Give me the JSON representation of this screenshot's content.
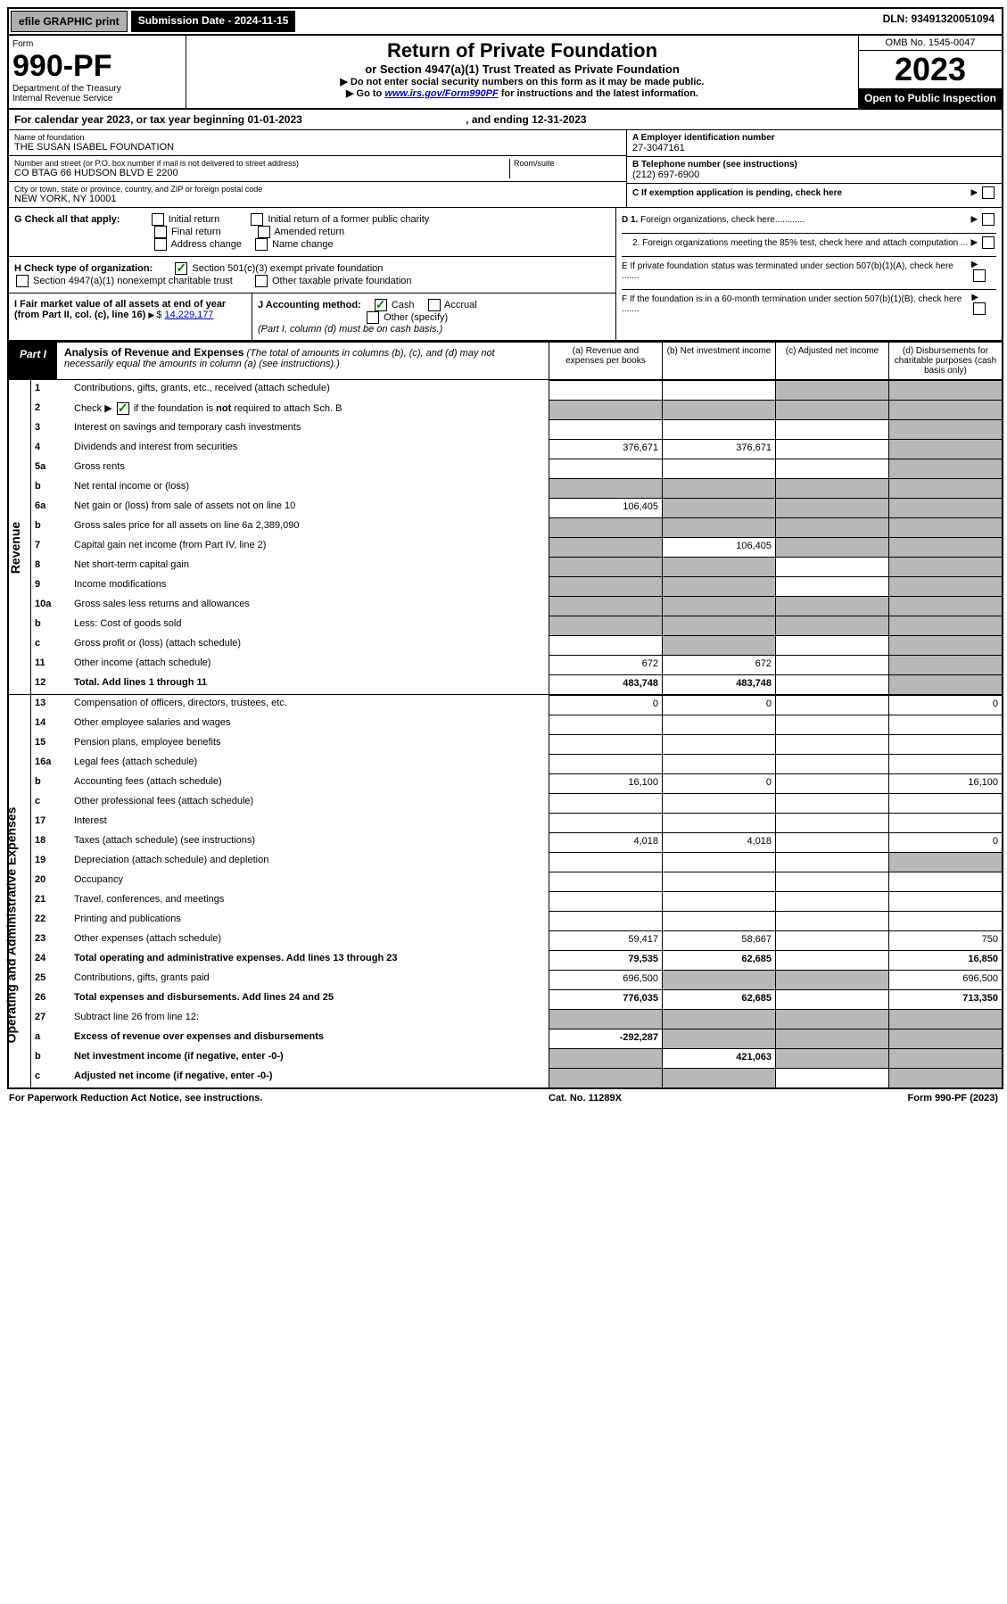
{
  "top": {
    "efile": "efile GRAPHIC print",
    "submission": "Submission Date - 2024-11-15",
    "dln": "DLN: 93491320051094"
  },
  "header": {
    "form_label": "Form",
    "form_num": "990-PF",
    "dept": "Department of the Treasury",
    "irs": "Internal Revenue Service",
    "title": "Return of Private Foundation",
    "subtitle": "or Section 4947(a)(1) Trust Treated as Private Foundation",
    "inst1": "▶ Do not enter social security numbers on this form as it may be made public.",
    "inst2": "▶ Go to ",
    "link": "www.irs.gov/Form990PF",
    "inst2b": " for instructions and the latest information.",
    "omb": "OMB No. 1545-0047",
    "year": "2023",
    "open": "Open to Public Inspection"
  },
  "cal_year": {
    "text": "For calendar year 2023, or tax year beginning 01-01-2023",
    "ending": ", and ending 12-31-2023"
  },
  "foundation": {
    "name_label": "Name of foundation",
    "name": "THE SUSAN ISABEL FOUNDATION",
    "addr_label": "Number and street (or P.O. box number if mail is not delivered to street address)",
    "addr": "CO BTAG 66 HUDSON BLVD E 2200",
    "room_label": "Room/suite",
    "city_label": "City or town, state or province, country, and ZIP or foreign postal code",
    "city": "NEW YORK, NY  10001"
  },
  "right_info": {
    "a_label": "A Employer identification number",
    "a_val": "27-3047161",
    "b_label": "B Telephone number (see instructions)",
    "b_val": "(212) 697-6900",
    "c_label": "C If exemption application is pending, check here",
    "d1": "D 1. Foreign organizations, check here............",
    "d2": "2. Foreign organizations meeting the 85% test, check here and attach computation ...",
    "e": "E  If private foundation status was terminated under section 507(b)(1)(A), check here .......",
    "f": "F  If the foundation is in a 60-month termination under section 507(b)(1)(B), check here ......."
  },
  "g_section": {
    "label": "G Check all that apply:",
    "opt1": "Initial return",
    "opt2": "Final return",
    "opt3": "Address change",
    "opt4": "Initial return of a former public charity",
    "opt5": "Amended return",
    "opt6": "Name change"
  },
  "h_section": {
    "label": "H Check type of organization:",
    "opt1": "Section 501(c)(3) exempt private foundation",
    "opt2": "Section 4947(a)(1) nonexempt charitable trust",
    "opt3": "Other taxable private foundation"
  },
  "i_section": {
    "label": "I Fair market value of all assets at end of year (from Part II, col. (c), line 16)",
    "value": "14,229,177"
  },
  "j_section": {
    "label": "J Accounting method:",
    "cash": "Cash",
    "accrual": "Accrual",
    "other": "Other (specify)",
    "note": "(Part I, column (d) must be on cash basis.)"
  },
  "part1": {
    "label": "Part I",
    "title": "Analysis of Revenue and Expenses",
    "sub": "(The total of amounts in columns (b), (c), and (d) may not necessarily equal the amounts in column (a) (see instructions).)",
    "col_a": "(a)   Revenue and expenses per books",
    "col_b": "(b)   Net investment income",
    "col_c": "(c)   Adjusted net income",
    "col_d": "(d)   Disbursements for charitable purposes (cash basis only)"
  },
  "side_labels": {
    "revenue": "Revenue",
    "expenses": "Operating and Administrative Expenses"
  },
  "rows": [
    {
      "n": "1",
      "d": "Contributions, gifts, grants, etc., received (attach schedule)",
      "a": "",
      "b": "",
      "c": "gray",
      "dd": "gray"
    },
    {
      "n": "2",
      "d": "Check ▶ ☑ if the foundation is not required to attach Sch. B",
      "a": "gray",
      "b": "gray",
      "c": "gray",
      "dd": "gray",
      "check": true
    },
    {
      "n": "3",
      "d": "Interest on savings and temporary cash investments",
      "a": "",
      "b": "",
      "c": "",
      "dd": "gray"
    },
    {
      "n": "4",
      "d": "Dividends and interest from securities",
      "a": "376,671",
      "b": "376,671",
      "c": "",
      "dd": "gray"
    },
    {
      "n": "5a",
      "d": "Gross rents",
      "a": "",
      "b": "",
      "c": "",
      "dd": "gray"
    },
    {
      "n": "b",
      "d": "Net rental income or (loss)",
      "a": "gray",
      "b": "gray",
      "c": "gray",
      "dd": "gray"
    },
    {
      "n": "6a",
      "d": "Net gain or (loss) from sale of assets not on line 10",
      "a": "106,405",
      "b": "gray",
      "c": "gray",
      "dd": "gray"
    },
    {
      "n": "b",
      "d": "Gross sales price for all assets on line 6a            2,389,090",
      "a": "gray",
      "b": "gray",
      "c": "gray",
      "dd": "gray"
    },
    {
      "n": "7",
      "d": "Capital gain net income (from Part IV, line 2)",
      "a": "gray",
      "b": "106,405",
      "c": "gray",
      "dd": "gray"
    },
    {
      "n": "8",
      "d": "Net short-term capital gain",
      "a": "gray",
      "b": "gray",
      "c": "",
      "dd": "gray"
    },
    {
      "n": "9",
      "d": "Income modifications",
      "a": "gray",
      "b": "gray",
      "c": "",
      "dd": "gray"
    },
    {
      "n": "10a",
      "d": "Gross sales less returns and allowances",
      "a": "gray",
      "b": "gray",
      "c": "gray",
      "dd": "gray"
    },
    {
      "n": "b",
      "d": "Less: Cost of goods sold",
      "a": "gray",
      "b": "gray",
      "c": "gray",
      "dd": "gray"
    },
    {
      "n": "c",
      "d": "Gross profit or (loss) (attach schedule)",
      "a": "",
      "b": "gray",
      "c": "",
      "dd": "gray"
    },
    {
      "n": "11",
      "d": "Other income (attach schedule)",
      "a": "672",
      "b": "672",
      "c": "",
      "dd": "gray"
    },
    {
      "n": "12",
      "d": "Total. Add lines 1 through 11",
      "a": "483,748",
      "b": "483,748",
      "c": "",
      "dd": "gray",
      "bold": true
    }
  ],
  "exp_rows": [
    {
      "n": "13",
      "d": "Compensation of officers, directors, trustees, etc.",
      "a": "0",
      "b": "0",
      "c": "",
      "dd": "0"
    },
    {
      "n": "14",
      "d": "Other employee salaries and wages",
      "a": "",
      "b": "",
      "c": "",
      "dd": ""
    },
    {
      "n": "15",
      "d": "Pension plans, employee benefits",
      "a": "",
      "b": "",
      "c": "",
      "dd": ""
    },
    {
      "n": "16a",
      "d": "Legal fees (attach schedule)",
      "a": "",
      "b": "",
      "c": "",
      "dd": ""
    },
    {
      "n": "b",
      "d": "Accounting fees (attach schedule)",
      "a": "16,100",
      "b": "0",
      "c": "",
      "dd": "16,100"
    },
    {
      "n": "c",
      "d": "Other professional fees (attach schedule)",
      "a": "",
      "b": "",
      "c": "",
      "dd": ""
    },
    {
      "n": "17",
      "d": "Interest",
      "a": "",
      "b": "",
      "c": "",
      "dd": ""
    },
    {
      "n": "18",
      "d": "Taxes (attach schedule) (see instructions)",
      "a": "4,018",
      "b": "4,018",
      "c": "",
      "dd": "0"
    },
    {
      "n": "19",
      "d": "Depreciation (attach schedule) and depletion",
      "a": "",
      "b": "",
      "c": "",
      "dd": "gray"
    },
    {
      "n": "20",
      "d": "Occupancy",
      "a": "",
      "b": "",
      "c": "",
      "dd": ""
    },
    {
      "n": "21",
      "d": "Travel, conferences, and meetings",
      "a": "",
      "b": "",
      "c": "",
      "dd": ""
    },
    {
      "n": "22",
      "d": "Printing and publications",
      "a": "",
      "b": "",
      "c": "",
      "dd": ""
    },
    {
      "n": "23",
      "d": "Other expenses (attach schedule)",
      "a": "59,417",
      "b": "58,667",
      "c": "",
      "dd": "750"
    },
    {
      "n": "24",
      "d": "Total operating and administrative expenses. Add lines 13 through 23",
      "a": "79,535",
      "b": "62,685",
      "c": "",
      "dd": "16,850",
      "bold": true
    },
    {
      "n": "25",
      "d": "Contributions, gifts, grants paid",
      "a": "696,500",
      "b": "gray",
      "c": "gray",
      "dd": "696,500"
    },
    {
      "n": "26",
      "d": "Total expenses and disbursements. Add lines 24 and 25",
      "a": "776,035",
      "b": "62,685",
      "c": "",
      "dd": "713,350",
      "bold": true
    },
    {
      "n": "27",
      "d": "Subtract line 26 from line 12:",
      "a": "gray",
      "b": "gray",
      "c": "gray",
      "dd": "gray"
    },
    {
      "n": "a",
      "d": "Excess of revenue over expenses and disbursements",
      "a": "-292,287",
      "b": "gray",
      "c": "gray",
      "dd": "gray",
      "bold": true
    },
    {
      "n": "b",
      "d": "Net investment income (if negative, enter -0-)",
      "a": "gray",
      "b": "421,063",
      "c": "gray",
      "dd": "gray",
      "bold": true
    },
    {
      "n": "c",
      "d": "Adjusted net income (if negative, enter -0-)",
      "a": "gray",
      "b": "gray",
      "c": "",
      "dd": "gray",
      "bold": true
    }
  ],
  "footer": {
    "left": "For Paperwork Reduction Act Notice, see instructions.",
    "center": "Cat. No. 11289X",
    "right": "Form 990-PF (2023)"
  }
}
